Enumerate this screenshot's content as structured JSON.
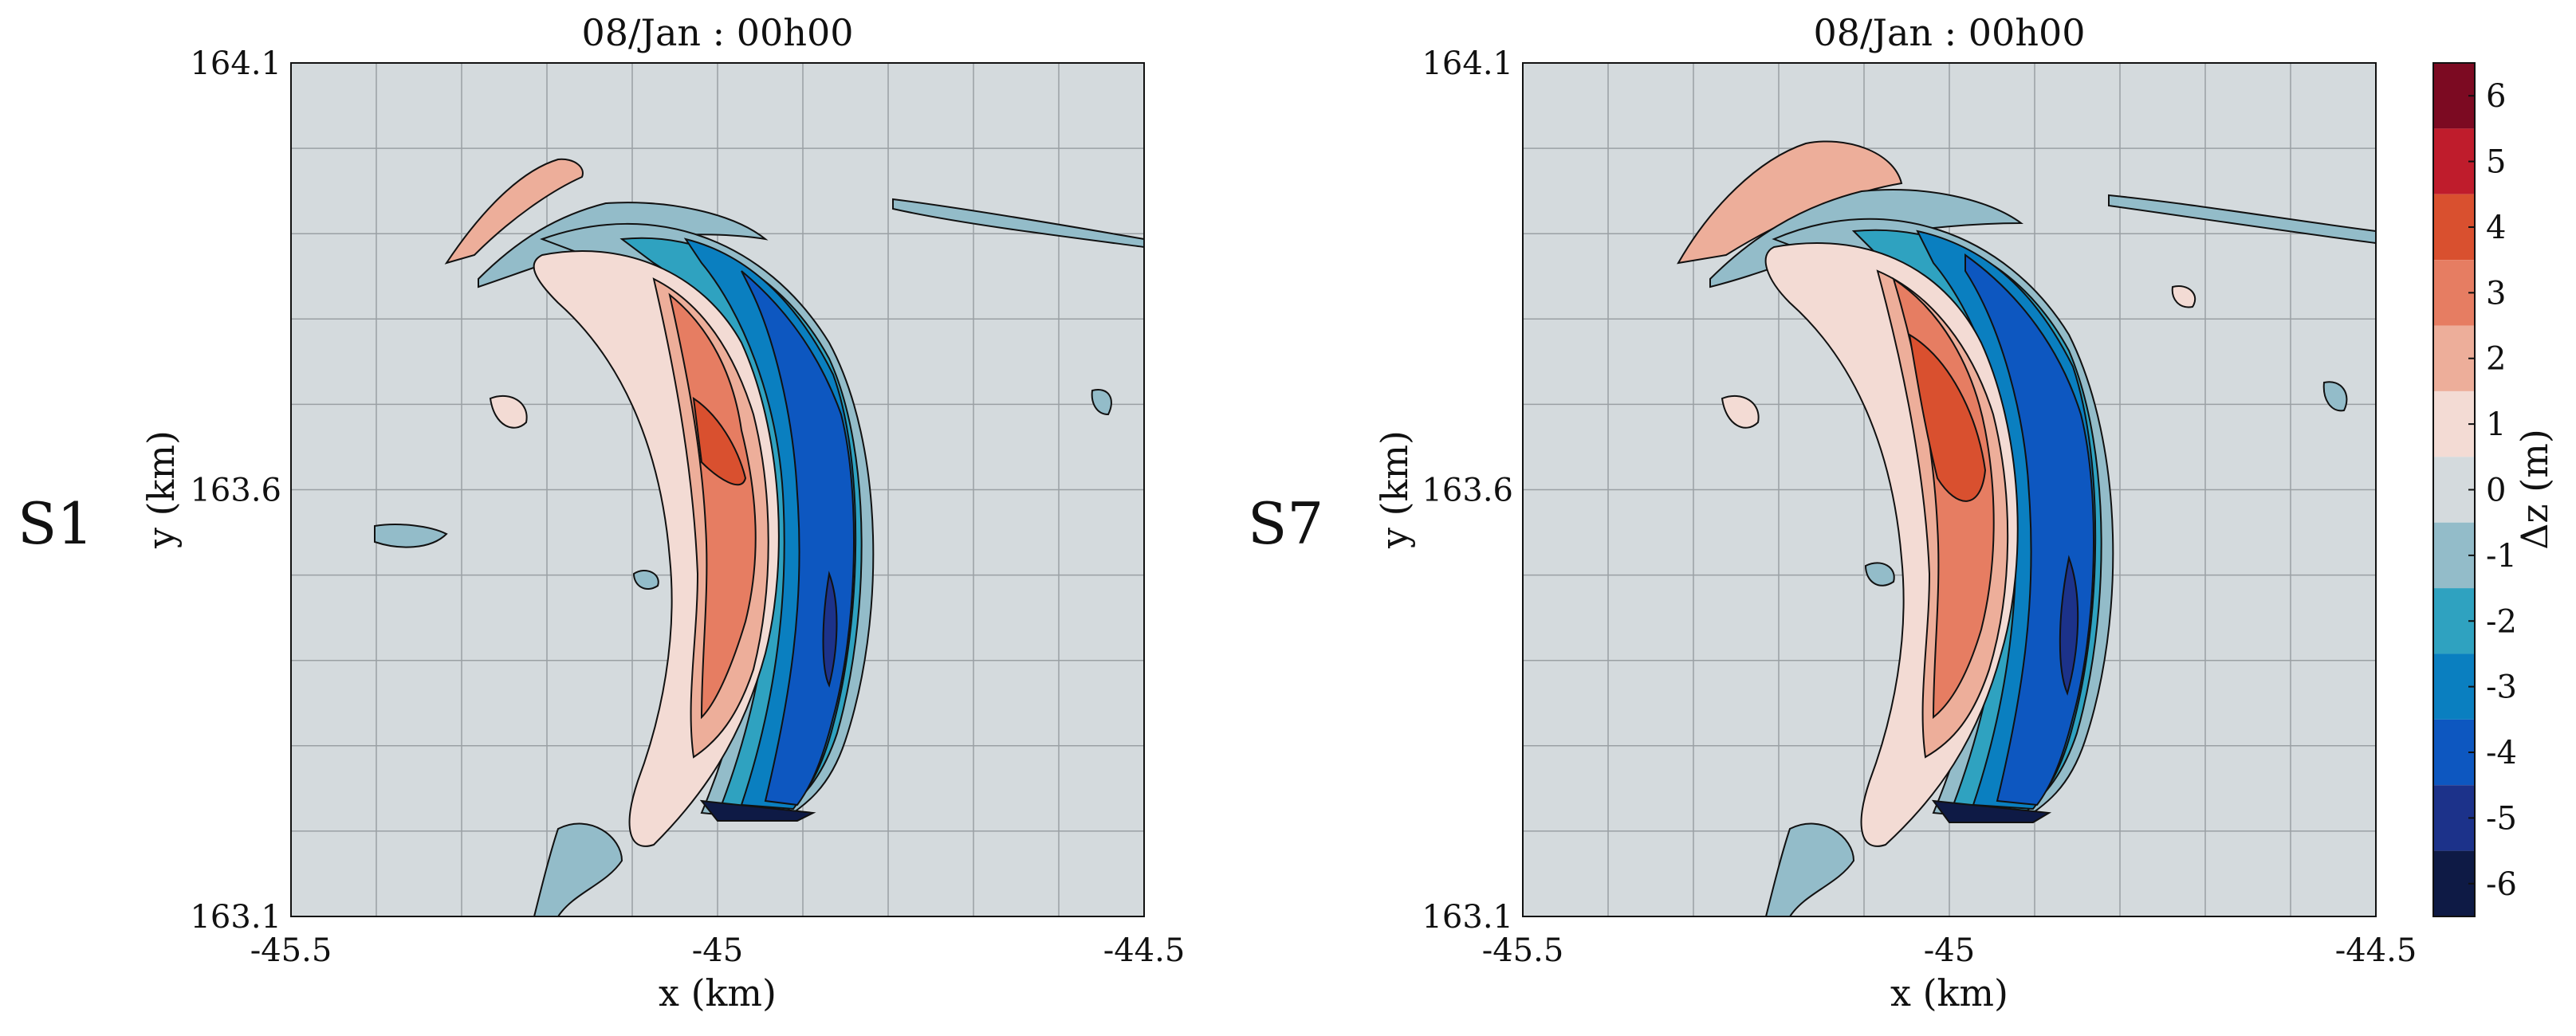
{
  "chart_data": {
    "type": "heatmap",
    "panels": [
      {
        "panel_label": "S1",
        "title": "08/Jan : 00h00",
        "xlabel": "x (km)",
        "ylabel": "y (km)",
        "xlim": [
          -45.5,
          -44.5
        ],
        "ylim": [
          163.1,
          164.1
        ],
        "x_tick_labels": [
          "-45.5",
          "-45",
          "-44.5"
        ],
        "y_tick_labels": [
          "163.1",
          "163.6",
          "164.1"
        ],
        "grid": true
      },
      {
        "panel_label": "S7",
        "title": "08/Jan : 00h00",
        "xlabel": "x (km)",
        "ylabel": "y (km)",
        "xlim": [
          -45.5,
          -44.5
        ],
        "ylim": [
          163.1,
          164.1
        ],
        "x_tick_labels": [
          "-45.5",
          "-45",
          "-44.5"
        ],
        "y_tick_labels": [
          "163.1",
          "163.6",
          "164.1"
        ],
        "grid": true
      }
    ],
    "colorbar": {
      "label": "Δz (m)",
      "range": [
        -6.5,
        6.5
      ],
      "tick_labels": [
        "6",
        "5",
        "4",
        "3",
        "2",
        "1",
        "0",
        "-1",
        "-2",
        "-3",
        "-4",
        "-5",
        "-6"
      ],
      "levels": [
        {
          "range": [
            5.5,
            6.5
          ],
          "color": "#7c0a22"
        },
        {
          "range": [
            4.5,
            5.5
          ],
          "color": "#bf1c2c"
        },
        {
          "range": [
            3.5,
            4.5
          ],
          "color": "#d9502f"
        },
        {
          "range": [
            2.5,
            3.5
          ],
          "color": "#e67d62"
        },
        {
          "range": [
            1.5,
            2.5
          ],
          "color": "#edae9a"
        },
        {
          "range": [
            0.5,
            1.5
          ],
          "color": "#f3dbd4"
        },
        {
          "range": [
            -0.5,
            0.5
          ],
          "color": "#d4dadd"
        },
        {
          "range": [
            -1.5,
            -0.5
          ],
          "color": "#93bcc9"
        },
        {
          "range": [
            -2.5,
            -1.5
          ],
          "color": "#2fa2c0"
        },
        {
          "range": [
            -3.5,
            -2.5
          ],
          "color": "#0a7fc0"
        },
        {
          "range": [
            -4.5,
            -3.5
          ],
          "color": "#0d57c0"
        },
        {
          "range": [
            -5.5,
            -4.5
          ],
          "color": "#1c328a"
        },
        {
          "range": [
            -6.5,
            -5.5
          ],
          "color": "#0e1a45"
        }
      ]
    },
    "background_color": "#d4dadd",
    "grid_color": "#9aa0a4"
  }
}
